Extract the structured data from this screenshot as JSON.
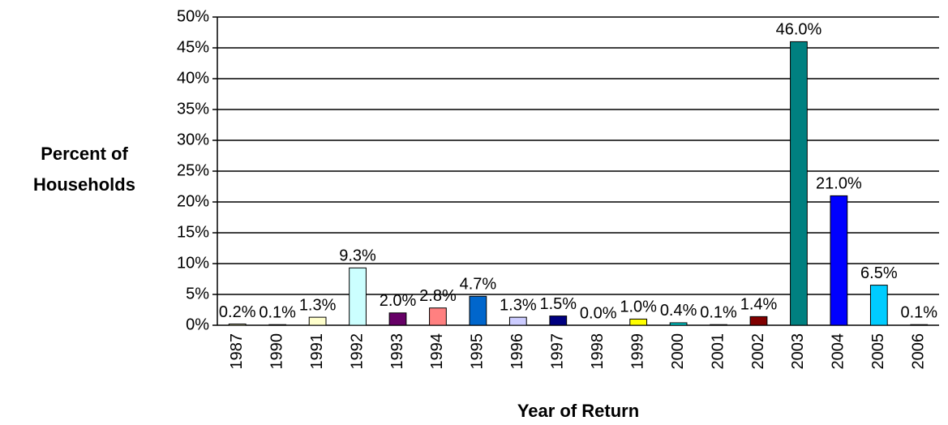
{
  "chart_data": {
    "type": "bar",
    "ylabel": [
      "Percent of",
      "Households"
    ],
    "xlabel": "Year of Return",
    "categories": [
      "1987",
      "1990",
      "1991",
      "1992",
      "1993",
      "1994",
      "1995",
      "1996",
      "1997",
      "1998",
      "1999",
      "2000",
      "2001",
      "2002",
      "2003",
      "2004",
      "2005",
      "2006"
    ],
    "values": [
      0.2,
      0.1,
      1.3,
      9.3,
      2.0,
      2.8,
      4.7,
      1.3,
      1.5,
      0.0,
      1.0,
      0.4,
      0.1,
      1.4,
      46.0,
      21.0,
      6.5,
      0.1
    ],
    "value_labels": [
      "0.2%",
      "0.1%",
      "1.3%",
      "9.3%",
      "2.0%",
      "2.8%",
      "4.7%",
      "1.3%",
      "1.5%",
      "0.0%",
      "1.0%",
      "0.4%",
      "0.1%",
      "1.4%",
      "46.0%",
      "21.0%",
      "6.5%",
      "0.1%"
    ],
    "colors": [
      "#ffffcc",
      "#ffffcc",
      "#ffffcc",
      "#ccffff",
      "#660066",
      "#ff8080",
      "#0066cc",
      "#ccccff",
      "#000080",
      "#ff00ff",
      "#ffff00",
      "#00cccc",
      "#800080",
      "#800000",
      "#008080",
      "#0000ff",
      "#00ccff",
      "#ccffff"
    ],
    "ylim": [
      0,
      50
    ],
    "yticks": [
      {
        "value": 0,
        "label": "0%"
      },
      {
        "value": 5,
        "label": "5%"
      },
      {
        "value": 10,
        "label": "10%"
      },
      {
        "value": 15,
        "label": "15%"
      },
      {
        "value": 20,
        "label": "20%"
      },
      {
        "value": 25,
        "label": "25%"
      },
      {
        "value": 30,
        "label": "30%"
      },
      {
        "value": 35,
        "label": "35%"
      },
      {
        "value": 40,
        "label": "40%"
      },
      {
        "value": 45,
        "label": "45%"
      },
      {
        "value": 50,
        "label": "50%"
      }
    ],
    "grid": true
  }
}
